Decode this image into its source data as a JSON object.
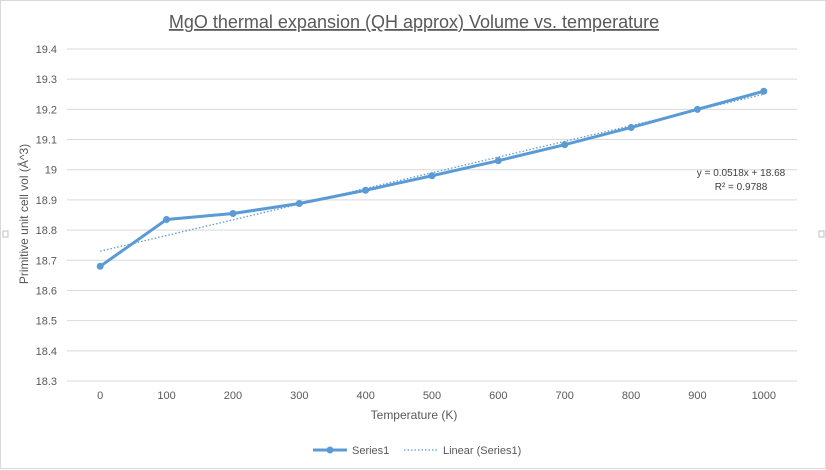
{
  "chart_data": {
    "type": "line",
    "title": "MgO thermal expansion (QH approx) Volume vs. temperature",
    "xlabel": "Temperature (K)",
    "ylabel": "Primitive unit cell vol (Å^3)",
    "categories": [
      "0",
      "100",
      "200",
      "300",
      "400",
      "500",
      "600",
      "700",
      "800",
      "900",
      "1000"
    ],
    "series": [
      {
        "name": "Series1",
        "values": [
          18.68,
          18.835,
          18.855,
          18.888,
          18.932,
          18.98,
          19.03,
          19.083,
          19.14,
          19.2,
          19.26
        ],
        "color": "#5b9bd5"
      }
    ],
    "trendline": {
      "name": "Linear (Series1)",
      "type": "linear",
      "start": 18.73,
      "end": 19.25,
      "equation": "y = 0.0518x + 18.68",
      "r_squared": "R² = 0.9788",
      "color": "#5b9bd5"
    },
    "ylim": [
      18.3,
      19.4
    ],
    "yticks": [
      "18.3",
      "18.4",
      "18.5",
      "18.6",
      "18.7",
      "18.8",
      "18.9",
      "19",
      "19.1",
      "19.2",
      "19.3",
      "19.4"
    ],
    "grid": true,
    "legend": "bottom"
  }
}
